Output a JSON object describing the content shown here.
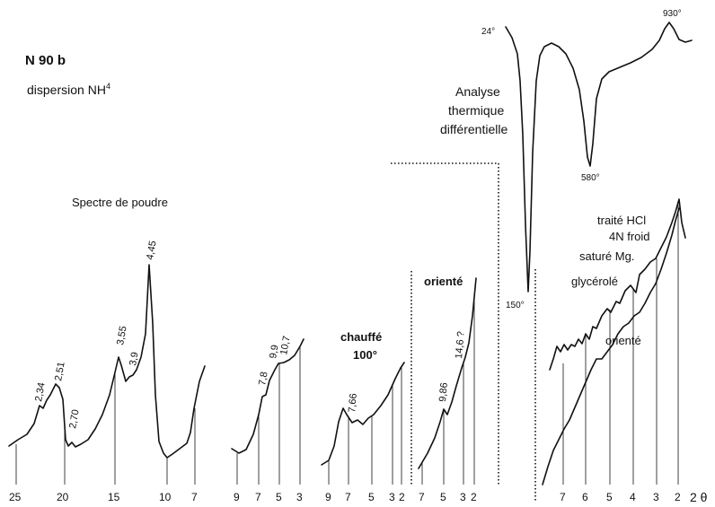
{
  "sample": {
    "title": "N 90 b",
    "treatment": "dispersion NH",
    "treatment_sup": "4"
  },
  "labels": {
    "powder_spectrum": "Spectre de poudre",
    "heated_l1": "chauffé",
    "heated_l2": "100°",
    "oriented_1": "orienté",
    "oriented_2": "orienté",
    "dta_l1": "Analyse",
    "dta_l2": "thermique",
    "dta_l3": "différentielle",
    "hcl_l1": "traité HCl",
    "hcl_l2": "4N froid",
    "hcl_l3": "saturé Mg.",
    "hcl_l4": "glycérolé"
  },
  "peaks": {
    "p1": "2,34",
    "p2": "2,51",
    "p3": "2,70",
    "p4": "3,55",
    "p5": "3,9",
    "p6": "4,45",
    "q1": "7,8",
    "q2": "9,9",
    "q3": "10,7",
    "r1": "7,66",
    "s1": "9,86",
    "s2": "14,6 ?"
  },
  "dta_temps": {
    "t24": "24°",
    "t150": "150°",
    "t580": "580°",
    "t930": "930°"
  },
  "axis": {
    "ticks": [
      "25",
      "20",
      "15",
      "10",
      "7",
      "9",
      "7",
      "5",
      "3",
      "9",
      "7",
      "5",
      "3",
      "2",
      "7",
      "5",
      "3",
      "2",
      "7",
      "6",
      "5",
      "4",
      "3",
      "2"
    ],
    "unit": "2 θ"
  }
}
